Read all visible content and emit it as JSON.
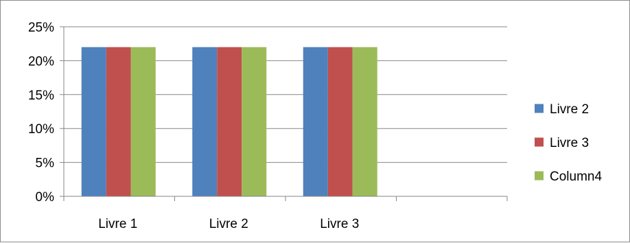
{
  "chart_data": {
    "type": "bar",
    "title": "",
    "xlabel": "",
    "ylabel": "",
    "categories": [
      "Livre 1",
      "Livre 2",
      "Livre 3",
      ""
    ],
    "series": [
      {
        "name": "Livre 2",
        "values": [
          0.22,
          0.22,
          0.22,
          null
        ],
        "color": "#4f81bd"
      },
      {
        "name": "Livre 3",
        "values": [
          0.22,
          0.22,
          0.22,
          null
        ],
        "color": "#c0504d"
      },
      {
        "name": "Column4",
        "values": [
          0.22,
          0.22,
          0.22,
          null
        ],
        "color": "#9bbb59"
      }
    ],
    "ylim": [
      0,
      0.25
    ],
    "yticks": [
      0,
      0.05,
      0.1,
      0.15,
      0.2,
      0.25
    ],
    "ytick_labels": [
      "0%",
      "5%",
      "10%",
      "15%",
      "20%",
      "25%"
    ],
    "grid": true,
    "legend_position": "right",
    "colors": {
      "gridline": "#868686",
      "axis": "#868686",
      "border": "#8c8c8c"
    }
  }
}
